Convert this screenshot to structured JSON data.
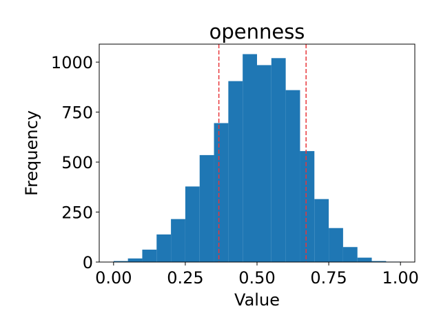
{
  "chart_data": {
    "type": "bar",
    "title": "openness",
    "xlabel": "Value",
    "ylabel": "Frequency",
    "bin_edges": [
      0.0,
      0.05,
      0.1,
      0.15,
      0.2,
      0.25,
      0.3,
      0.35,
      0.4,
      0.45,
      0.5,
      0.55,
      0.6,
      0.65,
      0.7,
      0.75,
      0.8,
      0.85,
      0.9,
      0.95,
      1.0
    ],
    "values": [
      5,
      18,
      62,
      138,
      215,
      378,
      535,
      695,
      905,
      1040,
      985,
      1020,
      860,
      555,
      315,
      170,
      75,
      22,
      5,
      2
    ],
    "xlim": [
      -0.05,
      1.05
    ],
    "ylim": [
      0,
      1090
    ],
    "xticks": [
      "0.00",
      "0.25",
      "0.50",
      "0.75",
      "1.00"
    ],
    "xtick_values": [
      0.0,
      0.25,
      0.5,
      0.75,
      1.0
    ],
    "yticks": [
      "0",
      "250",
      "500",
      "750",
      "1000"
    ],
    "ytick_values": [
      0,
      250,
      500,
      750,
      1000
    ],
    "vlines": [
      0.367,
      0.671
    ],
    "bar_color": "#1f77b4",
    "vline_color": "#e8363a",
    "grid": false
  }
}
